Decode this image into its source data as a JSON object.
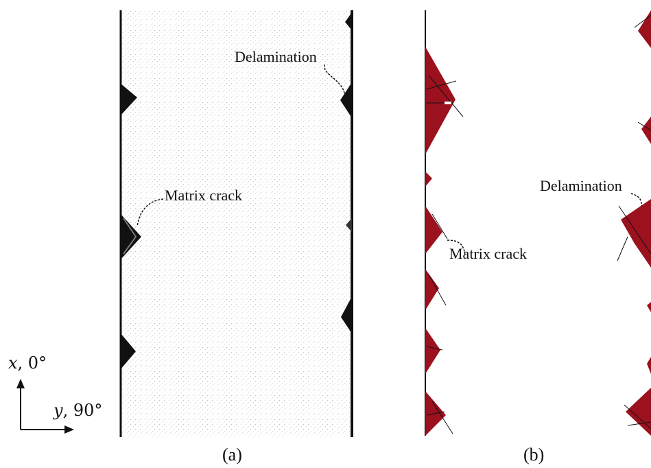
{
  "panel_a": {
    "caption": "(a)",
    "labels": {
      "delamination": "Delamination",
      "matrix_crack": "Matrix crack"
    }
  },
  "panel_b": {
    "caption": "(b)",
    "labels": {
      "delamination": "Delamination",
      "matrix_crack": "Matrix crack"
    }
  },
  "axes": {
    "x_label_var": "x",
    "x_label_angle": ", 0°",
    "y_label_var": "y",
    "y_label_angle": ", 90°"
  },
  "colors": {
    "damage_fill": "#9b111e",
    "ink": "#111111"
  }
}
